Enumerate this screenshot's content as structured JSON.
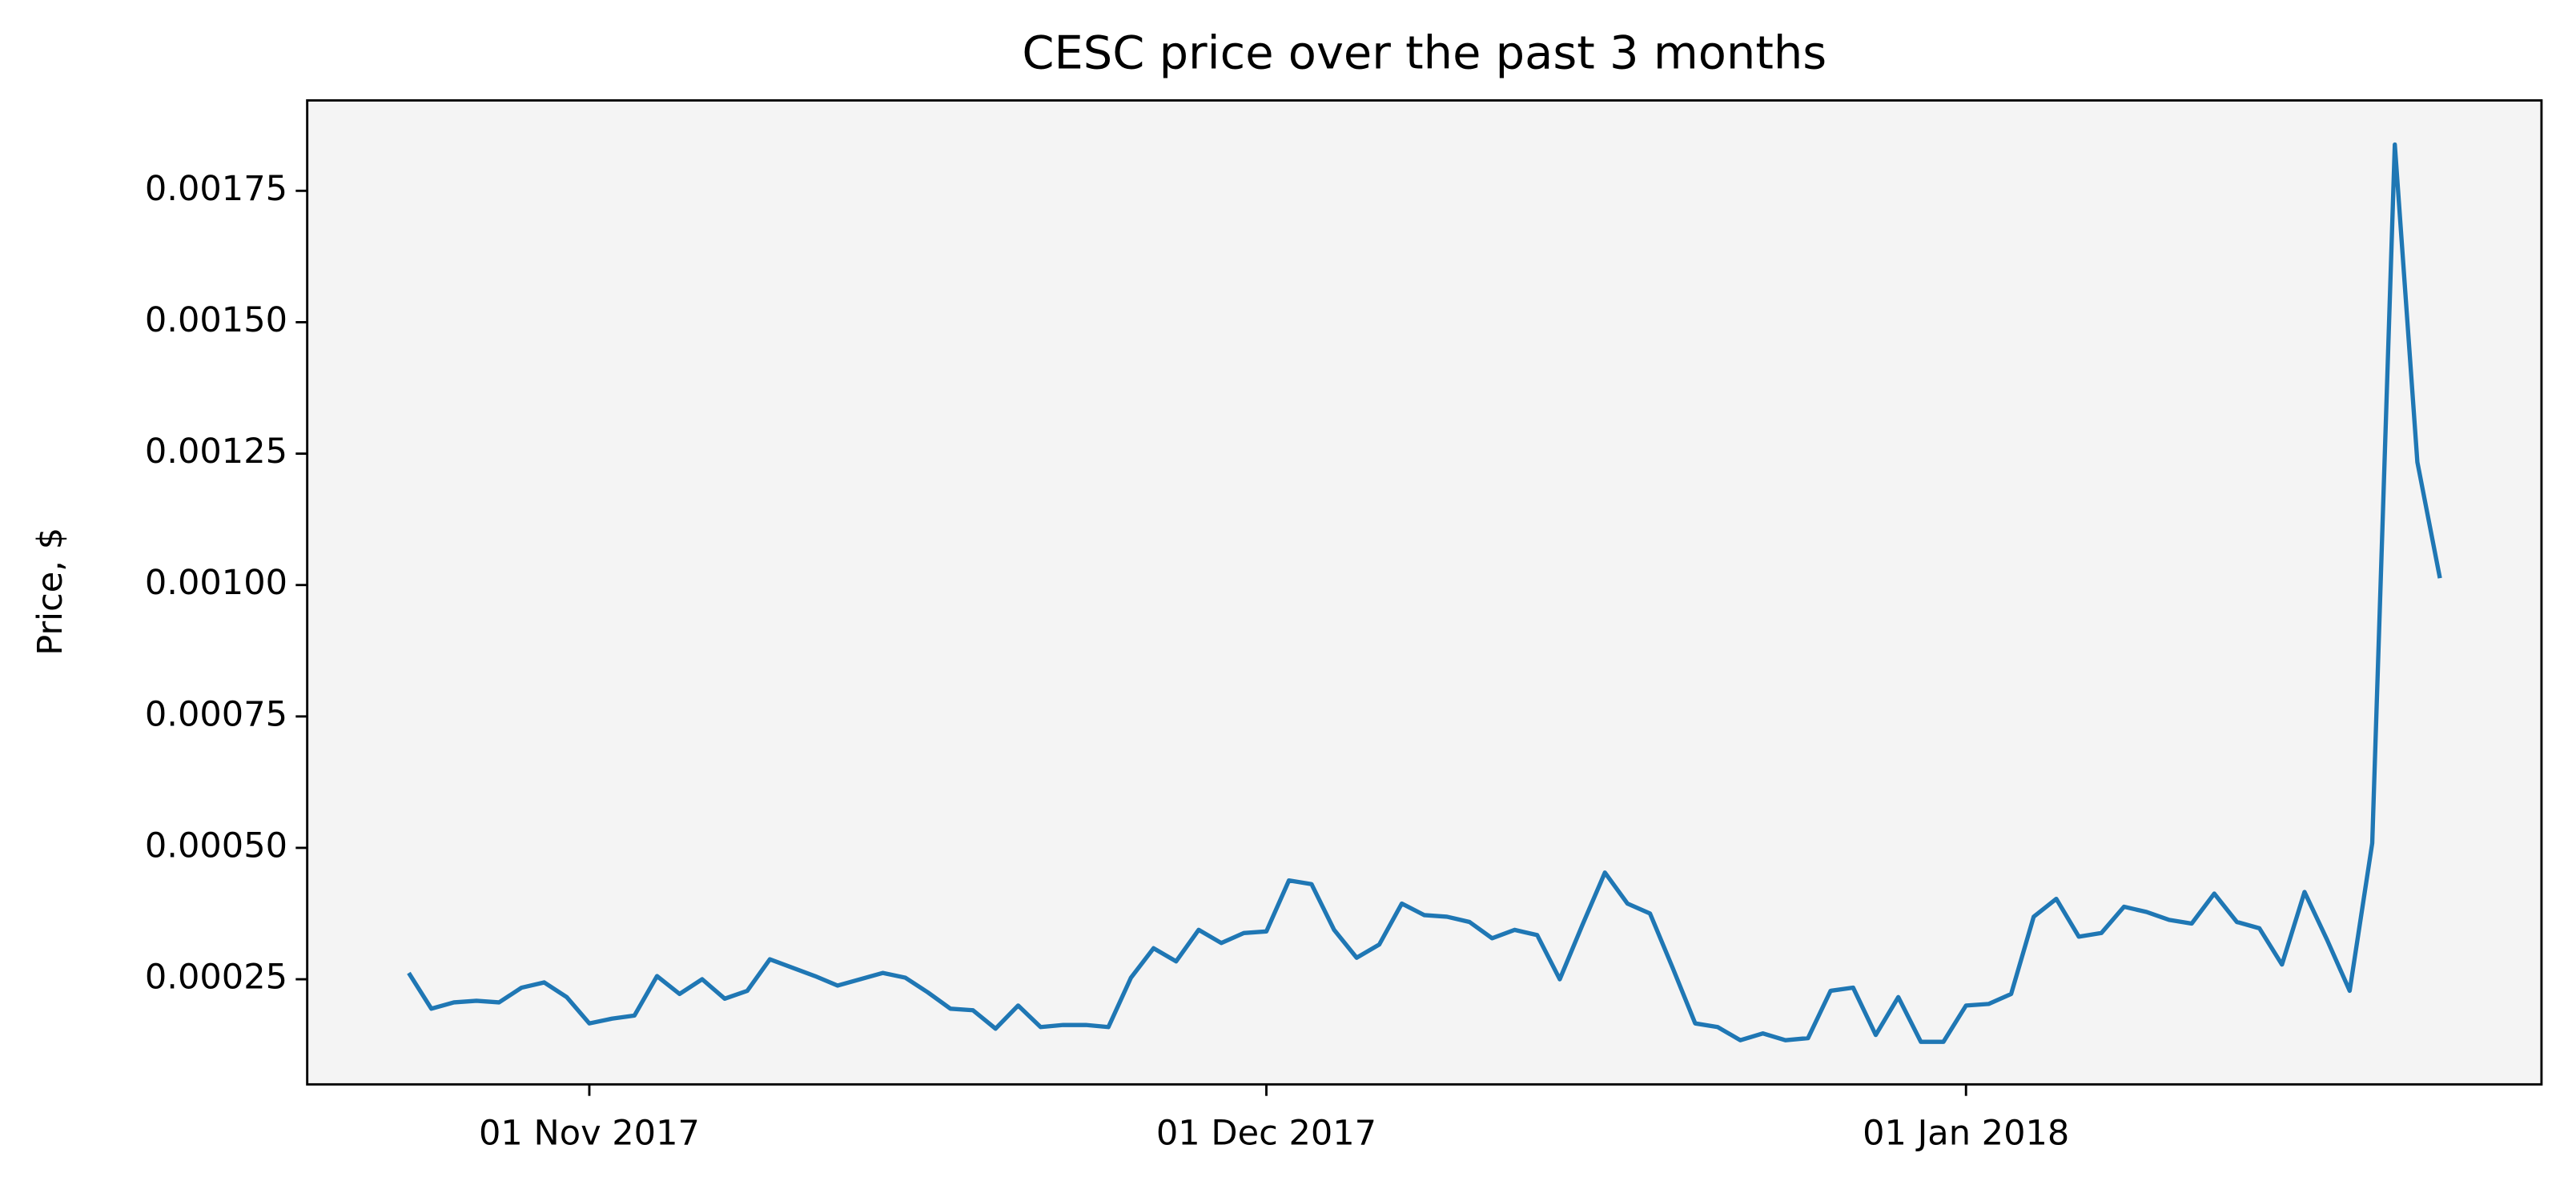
{
  "chart_data": {
    "type": "line",
    "title": "CESC price over the past 3 months",
    "ylabel": "Price, $",
    "x": [
      "2017-10-24",
      "2017-10-25",
      "2017-10-26",
      "2017-10-27",
      "2017-10-28",
      "2017-10-29",
      "2017-10-30",
      "2017-10-31",
      "2017-11-01",
      "2017-11-02",
      "2017-11-03",
      "2017-11-04",
      "2017-11-05",
      "2017-11-06",
      "2017-11-07",
      "2017-11-08",
      "2017-11-09",
      "2017-11-10",
      "2017-11-11",
      "2017-11-12",
      "2017-11-13",
      "2017-11-14",
      "2017-11-15",
      "2017-11-16",
      "2017-11-17",
      "2017-11-18",
      "2017-11-19",
      "2017-11-20",
      "2017-11-21",
      "2017-11-22",
      "2017-11-23",
      "2017-11-24",
      "2017-11-25",
      "2017-11-26",
      "2017-11-27",
      "2017-11-28",
      "2017-11-29",
      "2017-11-30",
      "2017-12-01",
      "2017-12-02",
      "2017-12-03",
      "2017-12-04",
      "2017-12-05",
      "2017-12-06",
      "2017-12-07",
      "2017-12-08",
      "2017-12-09",
      "2017-12-10",
      "2017-12-11",
      "2017-12-12",
      "2017-12-13",
      "2017-12-14",
      "2017-12-15",
      "2017-12-16",
      "2017-12-17",
      "2017-12-18",
      "2017-12-19",
      "2017-12-20",
      "2017-12-21",
      "2017-12-22",
      "2017-12-23",
      "2017-12-24",
      "2017-12-25",
      "2017-12-26",
      "2017-12-27",
      "2017-12-28",
      "2017-12-29",
      "2017-12-30",
      "2017-12-31",
      "2018-01-01",
      "2018-01-02",
      "2018-01-03",
      "2018-01-04",
      "2018-01-05",
      "2018-01-06",
      "2018-01-07",
      "2018-01-08",
      "2018-01-09",
      "2018-01-10",
      "2018-01-11",
      "2018-01-12",
      "2018-01-13",
      "2018-01-14",
      "2018-01-15",
      "2018-01-16",
      "2018-01-17",
      "2018-01-18",
      "2018-01-19",
      "2018-01-20",
      "2018-01-21",
      "2018-01-22"
    ],
    "series": [
      {
        "name": "CESC",
        "color": "#1f77b4",
        "values": [
          0.000262,
          0.000194,
          0.000206,
          0.000209,
          0.000206,
          0.000234,
          0.000244,
          0.000216,
          0.000166,
          0.000175,
          0.000181,
          0.000256,
          0.000222,
          0.00025,
          0.000213,
          0.000228,
          0.000288,
          0.000272,
          0.000256,
          0.000238,
          0.00025,
          0.000262,
          0.000253,
          0.000225,
          0.000194,
          0.000191,
          0.000156,
          0.0002,
          0.000159,
          0.000163,
          0.000163,
          0.000159,
          0.000253,
          0.000309,
          0.000284,
          0.000344,
          0.000319,
          0.000338,
          0.000341,
          0.000438,
          0.000431,
          0.000344,
          0.000291,
          0.000316,
          0.000394,
          0.000372,
          0.000369,
          0.000359,
          0.000328,
          0.000344,
          0.000334,
          0.00025,
          0.000353,
          0.000453,
          0.000394,
          0.000375,
          0.000272,
          0.000166,
          0.000159,
          0.000134,
          0.000147,
          0.000134,
          0.000138,
          0.000228,
          0.000234,
          0.000144,
          0.000216,
          0.000131,
          0.000131,
          0.0002,
          0.000203,
          0.000222,
          0.000369,
          0.000403,
          0.000331,
          0.000338,
          0.000388,
          0.000378,
          0.000363,
          0.000356,
          0.000413,
          0.000359,
          0.000347,
          0.000278,
          0.000416,
          0.000325,
          0.000228,
          0.000509,
          0.001838,
          0.001234,
          0.001013
        ]
      }
    ],
    "xlim": [
      "2017-10-19T12:00",
      "2018-01-26T12:00"
    ],
    "xticks": [
      {
        "value": "2017-11-01",
        "label": "01 Nov 2017"
      },
      {
        "value": "2017-12-01",
        "label": "01 Dec 2017"
      },
      {
        "value": "2018-01-01",
        "label": "01 Jan 2018"
      }
    ],
    "ylim": [
      5e-05,
      0.001922
    ],
    "yticks": [
      {
        "value": 0.00025,
        "label": "0.00025"
      },
      {
        "value": 0.0005,
        "label": "0.00050"
      },
      {
        "value": 0.00075,
        "label": "0.00075"
      },
      {
        "value": 0.001,
        "label": "0.00100"
      },
      {
        "value": 0.00125,
        "label": "0.00125"
      },
      {
        "value": 0.0015,
        "label": "0.00150"
      },
      {
        "value": 0.00175,
        "label": "0.00175"
      }
    ],
    "background": "#f4f4f4"
  }
}
